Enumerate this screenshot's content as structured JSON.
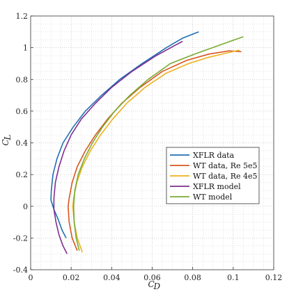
{
  "chart_data": {
    "type": "line",
    "title": "",
    "xlabel": "C_D",
    "ylabel": "C_L",
    "xlim": [
      0,
      0.12
    ],
    "ylim": [
      -0.4,
      1.2
    ],
    "x_ticks": [
      0,
      0.02,
      0.04,
      0.06,
      0.08,
      0.1,
      0.12
    ],
    "x_tick_labels": [
      "0",
      "0.02",
      "0.04",
      "0.06",
      "0.08",
      "0.1",
      "0.12"
    ],
    "y_ticks": [
      -0.4,
      -0.2,
      0,
      0.2,
      0.4,
      0.6,
      0.8,
      1,
      1.2
    ],
    "y_tick_labels": [
      "-0.4",
      "-0.2",
      "0",
      "0.2",
      "0.4",
      "0.6",
      "0.8",
      "1",
      "1.2"
    ],
    "grid": "major dotted + minor dotted",
    "legend_position": "lower-right",
    "series": [
      {
        "name": "XFLR data",
        "color": "#1f6fb5",
        "points": [
          [
            0.0175,
            -0.2
          ],
          [
            0.0155,
            -0.15
          ],
          [
            0.0135,
            -0.08
          ],
          [
            0.0115,
            -0.02
          ],
          [
            0.01,
            0.04
          ],
          [
            0.0102,
            0.1
          ],
          [
            0.011,
            0.2
          ],
          [
            0.013,
            0.3
          ],
          [
            0.016,
            0.4
          ],
          [
            0.021,
            0.5
          ],
          [
            0.027,
            0.6
          ],
          [
            0.035,
            0.7
          ],
          [
            0.044,
            0.8
          ],
          [
            0.055,
            0.9
          ],
          [
            0.067,
            1.0
          ],
          [
            0.075,
            1.06
          ],
          [
            0.083,
            1.1
          ]
        ]
      },
      {
        "name": "WT data, Re 5e5",
        "color": "#d9541e",
        "points": [
          [
            0.023,
            -0.28
          ],
          [
            0.0205,
            -0.2
          ],
          [
            0.019,
            -0.1
          ],
          [
            0.0185,
            0.0
          ],
          [
            0.019,
            0.05
          ],
          [
            0.0205,
            0.15
          ],
          [
            0.023,
            0.25
          ],
          [
            0.027,
            0.35
          ],
          [
            0.032,
            0.45
          ],
          [
            0.038,
            0.55
          ],
          [
            0.045,
            0.65
          ],
          [
            0.054,
            0.75
          ],
          [
            0.065,
            0.85
          ],
          [
            0.077,
            0.92
          ],
          [
            0.088,
            0.96
          ],
          [
            0.098,
            0.98
          ],
          [
            0.104,
            0.975
          ]
        ]
      },
      {
        "name": "WT data, Re 4e5",
        "color": "#edb120",
        "points": [
          [
            0.0255,
            -0.29
          ],
          [
            0.023,
            -0.2
          ],
          [
            0.0215,
            -0.1
          ],
          [
            0.0208,
            0.0
          ],
          [
            0.0212,
            0.05
          ],
          [
            0.0228,
            0.15
          ],
          [
            0.0255,
            0.25
          ],
          [
            0.0295,
            0.35
          ],
          [
            0.0345,
            0.45
          ],
          [
            0.0405,
            0.55
          ],
          [
            0.0475,
            0.65
          ],
          [
            0.0565,
            0.75
          ],
          [
            0.067,
            0.84
          ],
          [
            0.078,
            0.9
          ],
          [
            0.088,
            0.94
          ],
          [
            0.098,
            0.97
          ],
          [
            0.103,
            0.985
          ]
        ]
      },
      {
        "name": "XFLR model",
        "color": "#7e2f8e",
        "points": [
          [
            0.018,
            -0.3
          ],
          [
            0.016,
            -0.25
          ],
          [
            0.014,
            -0.18
          ],
          [
            0.0125,
            -0.1
          ],
          [
            0.0115,
            -0.02
          ],
          [
            0.0115,
            0.05
          ],
          [
            0.0122,
            0.15
          ],
          [
            0.014,
            0.25
          ],
          [
            0.0165,
            0.35
          ],
          [
            0.02,
            0.45
          ],
          [
            0.025,
            0.55
          ],
          [
            0.032,
            0.65
          ],
          [
            0.04,
            0.75
          ],
          [
            0.05,
            0.85
          ],
          [
            0.062,
            0.95
          ],
          [
            0.072,
            1.02
          ],
          [
            0.075,
            1.04
          ]
        ]
      },
      {
        "name": "WT model",
        "color": "#77ac30",
        "points": [
          [
            0.024,
            -0.28
          ],
          [
            0.0225,
            -0.2
          ],
          [
            0.0215,
            -0.1
          ],
          [
            0.0212,
            0.0
          ],
          [
            0.0218,
            0.1
          ],
          [
            0.0235,
            0.2
          ],
          [
            0.0265,
            0.3
          ],
          [
            0.0305,
            0.4
          ],
          [
            0.0355,
            0.5
          ],
          [
            0.0415,
            0.6
          ],
          [
            0.049,
            0.7
          ],
          [
            0.058,
            0.8
          ],
          [
            0.069,
            0.9
          ],
          [
            0.081,
            0.96
          ],
          [
            0.092,
            1.01
          ],
          [
            0.105,
            1.07
          ]
        ]
      }
    ]
  }
}
